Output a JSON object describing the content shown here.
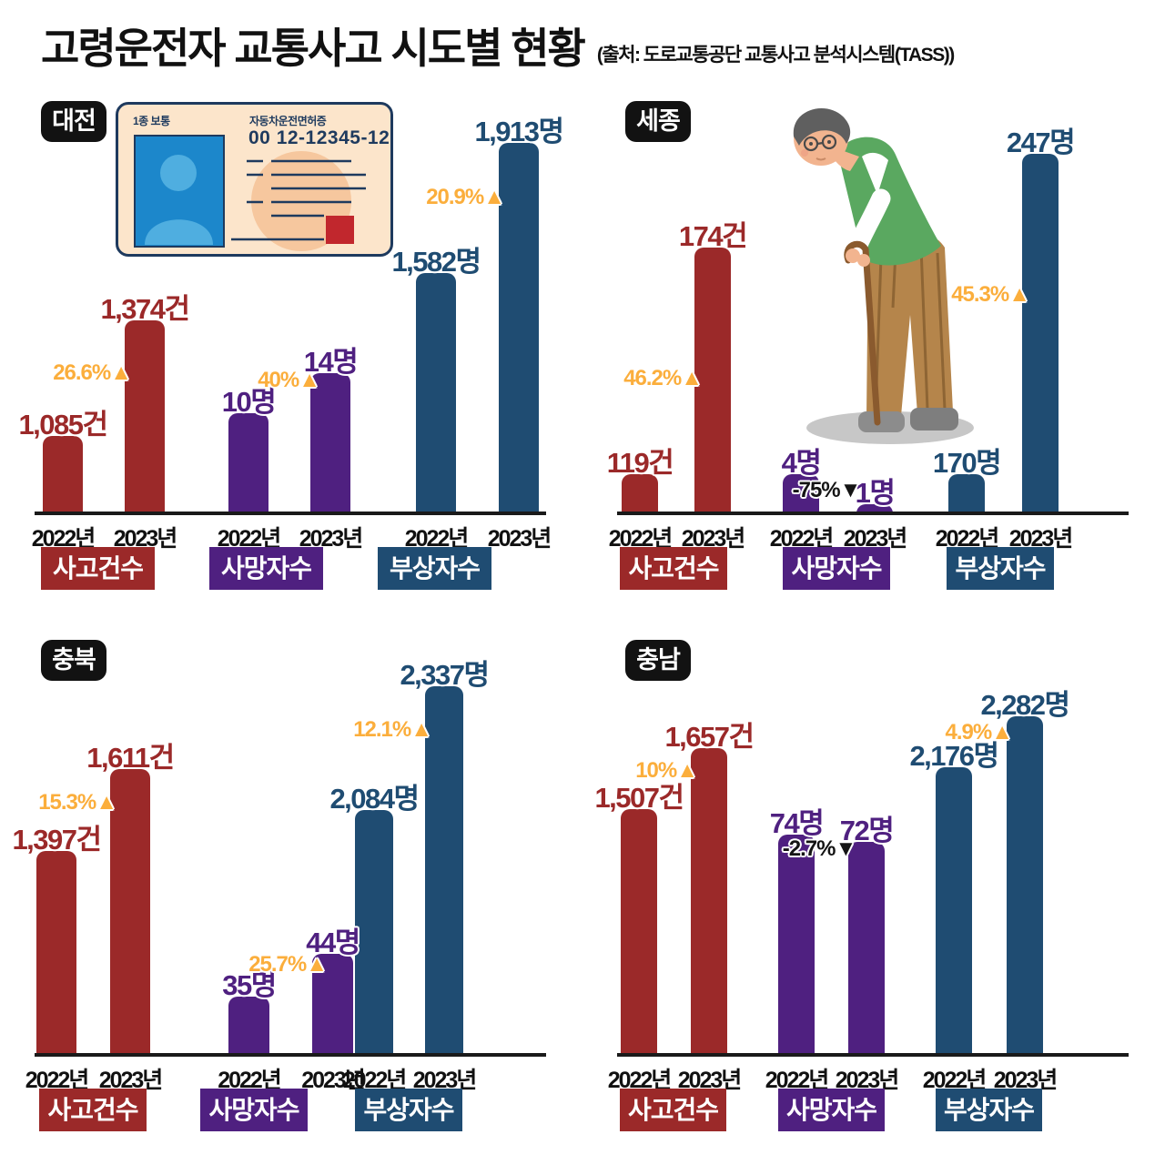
{
  "header": {
    "title": "고령운전자 교통사고 시도별 현황",
    "source": "(출처: 도로교통공단 교통사고 분석시스템(TASS))"
  },
  "license_card": {
    "class_label": "1종 보통",
    "doc_title": "자동차운전면허증",
    "license_number": "00 12-12345-12"
  },
  "colors": {
    "accidents": "#9B2929",
    "deaths": "#4F2080",
    "injuries": "#1F4C72",
    "increase": "#FBAE3C",
    "decrease": "#141414",
    "badge_black": "#121212"
  },
  "chart_data": {
    "type": "bar",
    "years": [
      "2022년",
      "2023년"
    ],
    "metrics": [
      "사고건수",
      "사망자수",
      "부상자수"
    ],
    "layout": {
      "grid": false,
      "value_labels": true,
      "not_to_scale": true,
      "legend_position": "below-as-badges"
    },
    "panels": [
      {
        "region": "대전",
        "groups": [
          {
            "metric": "사고건수",
            "values": [
              1085,
              1374
            ],
            "value_labels": [
              "1,085건",
              "1,374건"
            ],
            "change_pct": 26.6,
            "direction": "up",
            "change_label": "26.6%▲"
          },
          {
            "metric": "사망자수",
            "values": [
              10,
              14
            ],
            "value_labels": [
              "10명",
              "14명"
            ],
            "change_pct": 40,
            "direction": "up",
            "change_label": "40%▲"
          },
          {
            "metric": "부상자수",
            "values": [
              1582,
              1913
            ],
            "value_labels": [
              "1,582명",
              "1,913명"
            ],
            "change_pct": 20.9,
            "direction": "up",
            "change_label": "20.9%▲"
          }
        ]
      },
      {
        "region": "세종",
        "groups": [
          {
            "metric": "사고건수",
            "values": [
              119,
              174
            ],
            "value_labels": [
              "119건",
              "174건"
            ],
            "change_pct": 46.2,
            "direction": "up",
            "change_label": "46.2%▲"
          },
          {
            "metric": "사망자수",
            "values": [
              4,
              1
            ],
            "value_labels": [
              "4명",
              "1명"
            ],
            "change_pct": -75,
            "direction": "down",
            "change_label": "-75%▼"
          },
          {
            "metric": "부상자수",
            "values": [
              170,
              247
            ],
            "value_labels": [
              "170명",
              "247명"
            ],
            "change_pct": 45.3,
            "direction": "up",
            "change_label": "45.3%▲"
          }
        ]
      },
      {
        "region": "충북",
        "groups": [
          {
            "metric": "사고건수",
            "values": [
              1397,
              1611
            ],
            "value_labels": [
              "1,397건",
              "1,611건"
            ],
            "change_pct": 15.3,
            "direction": "up",
            "change_label": "15.3%▲"
          },
          {
            "metric": "사망자수",
            "values": [
              35,
              44
            ],
            "value_labels": [
              "35명",
              "44명"
            ],
            "change_pct": 25.7,
            "direction": "up",
            "change_label": "25.7%▲"
          },
          {
            "metric": "부상자수",
            "values": [
              2084,
              2337
            ],
            "value_labels": [
              "2,084명",
              "2,337명"
            ],
            "change_pct": 12.1,
            "direction": "up",
            "change_label": "12.1%▲"
          }
        ]
      },
      {
        "region": "충남",
        "groups": [
          {
            "metric": "사고건수",
            "values": [
              1507,
              1657
            ],
            "value_labels": [
              "1,507건",
              "1,657건"
            ],
            "change_pct": 10,
            "direction": "up",
            "change_label": "10%▲"
          },
          {
            "metric": "사망자수",
            "values": [
              74,
              72
            ],
            "value_labels": [
              "74명",
              "72명"
            ],
            "change_pct": -2.7,
            "direction": "down",
            "change_label": "-2.7%▼"
          },
          {
            "metric": "부상자수",
            "values": [
              2176,
              2282
            ],
            "value_labels": [
              "2,176명",
              "2,282명"
            ],
            "change_pct": 4.9,
            "direction": "up",
            "change_label": "4.9%▲"
          }
        ]
      }
    ]
  }
}
